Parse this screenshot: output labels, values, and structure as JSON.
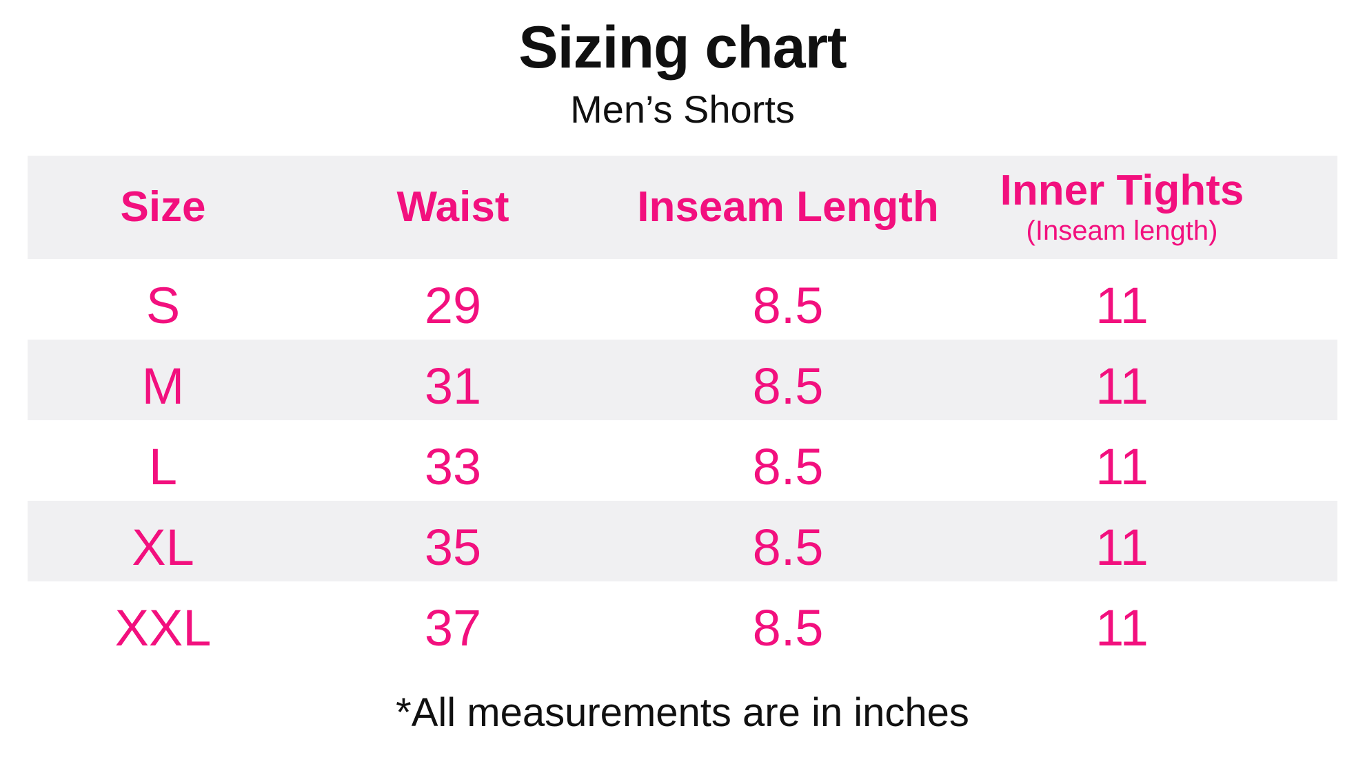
{
  "header": {
    "title": "Sizing chart",
    "subtitle": "Men’s Shorts"
  },
  "chart_data": {
    "type": "table",
    "title": "Sizing chart",
    "subtitle": "Men’s Shorts",
    "columns": [
      {
        "label": "Size"
      },
      {
        "label": "Waist"
      },
      {
        "label": "Inseam Length"
      },
      {
        "label": "Inner Tights",
        "sublabel": "(Inseam length)"
      }
    ],
    "rows": [
      [
        "S",
        "29",
        "8.5",
        "11"
      ],
      [
        "M",
        "31",
        "8.5",
        "11"
      ],
      [
        "L",
        "33",
        "8.5",
        "11"
      ],
      [
        "XL",
        "35",
        "8.5",
        "11"
      ],
      [
        "XXL",
        "37",
        "8.5",
        "11"
      ]
    ],
    "footnote": "*All measurements are in inches",
    "layout": {
      "header_fill": "#F0F0F2",
      "row_alternation": [
        "#FFFFFF",
        "#F0F0F2"
      ],
      "grid": "off"
    }
  },
  "footer": {
    "note": "*All measurements are in inches"
  },
  "colors": {
    "accent_pink": "#F2107E",
    "row_gray": "#F0F0F2",
    "text_black": "#101010"
  }
}
